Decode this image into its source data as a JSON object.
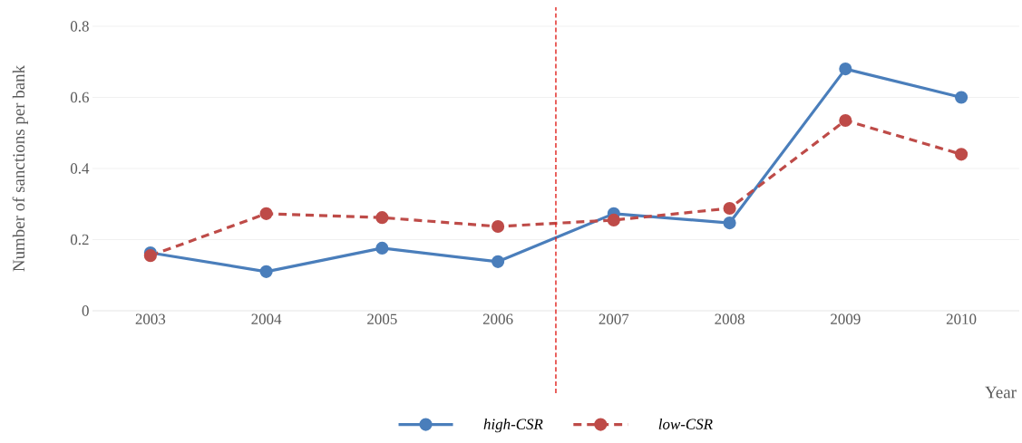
{
  "chart_data": {
    "type": "line",
    "xlabel": "Year",
    "ylabel": "Number of sanctions per bank",
    "x": [
      2003,
      2004,
      2005,
      2006,
      2007,
      2008,
      2009,
      2010
    ],
    "xlim": [
      2002.5,
      2010.5
    ],
    "xticks": [
      2003,
      2004,
      2005,
      2006,
      2007,
      2008,
      2009,
      2010
    ],
    "series": [
      {
        "name": "high-CSR",
        "color": "#4a7ebb",
        "line_style": "solid",
        "values": [
          0.163,
          0.11,
          0.176,
          0.138,
          0.273,
          0.247,
          0.68,
          0.6
        ]
      },
      {
        "name": "low-CSR",
        "color": "#be4b48",
        "line_style": "dashed",
        "values": [
          0.155,
          0.273,
          0.262,
          0.237,
          0.255,
          0.288,
          0.535,
          0.44
        ]
      }
    ],
    "ylim": [
      0,
      0.8
    ],
    "yticks": [
      0,
      0.2,
      0.4,
      0.6,
      0.8
    ],
    "grid": "y",
    "marker": "circle",
    "legend": "bottom",
    "ref_lines": [
      {
        "axis": "x",
        "value": 2006.5,
        "color": "#e0201c",
        "line_style": "dashed"
      }
    ]
  }
}
